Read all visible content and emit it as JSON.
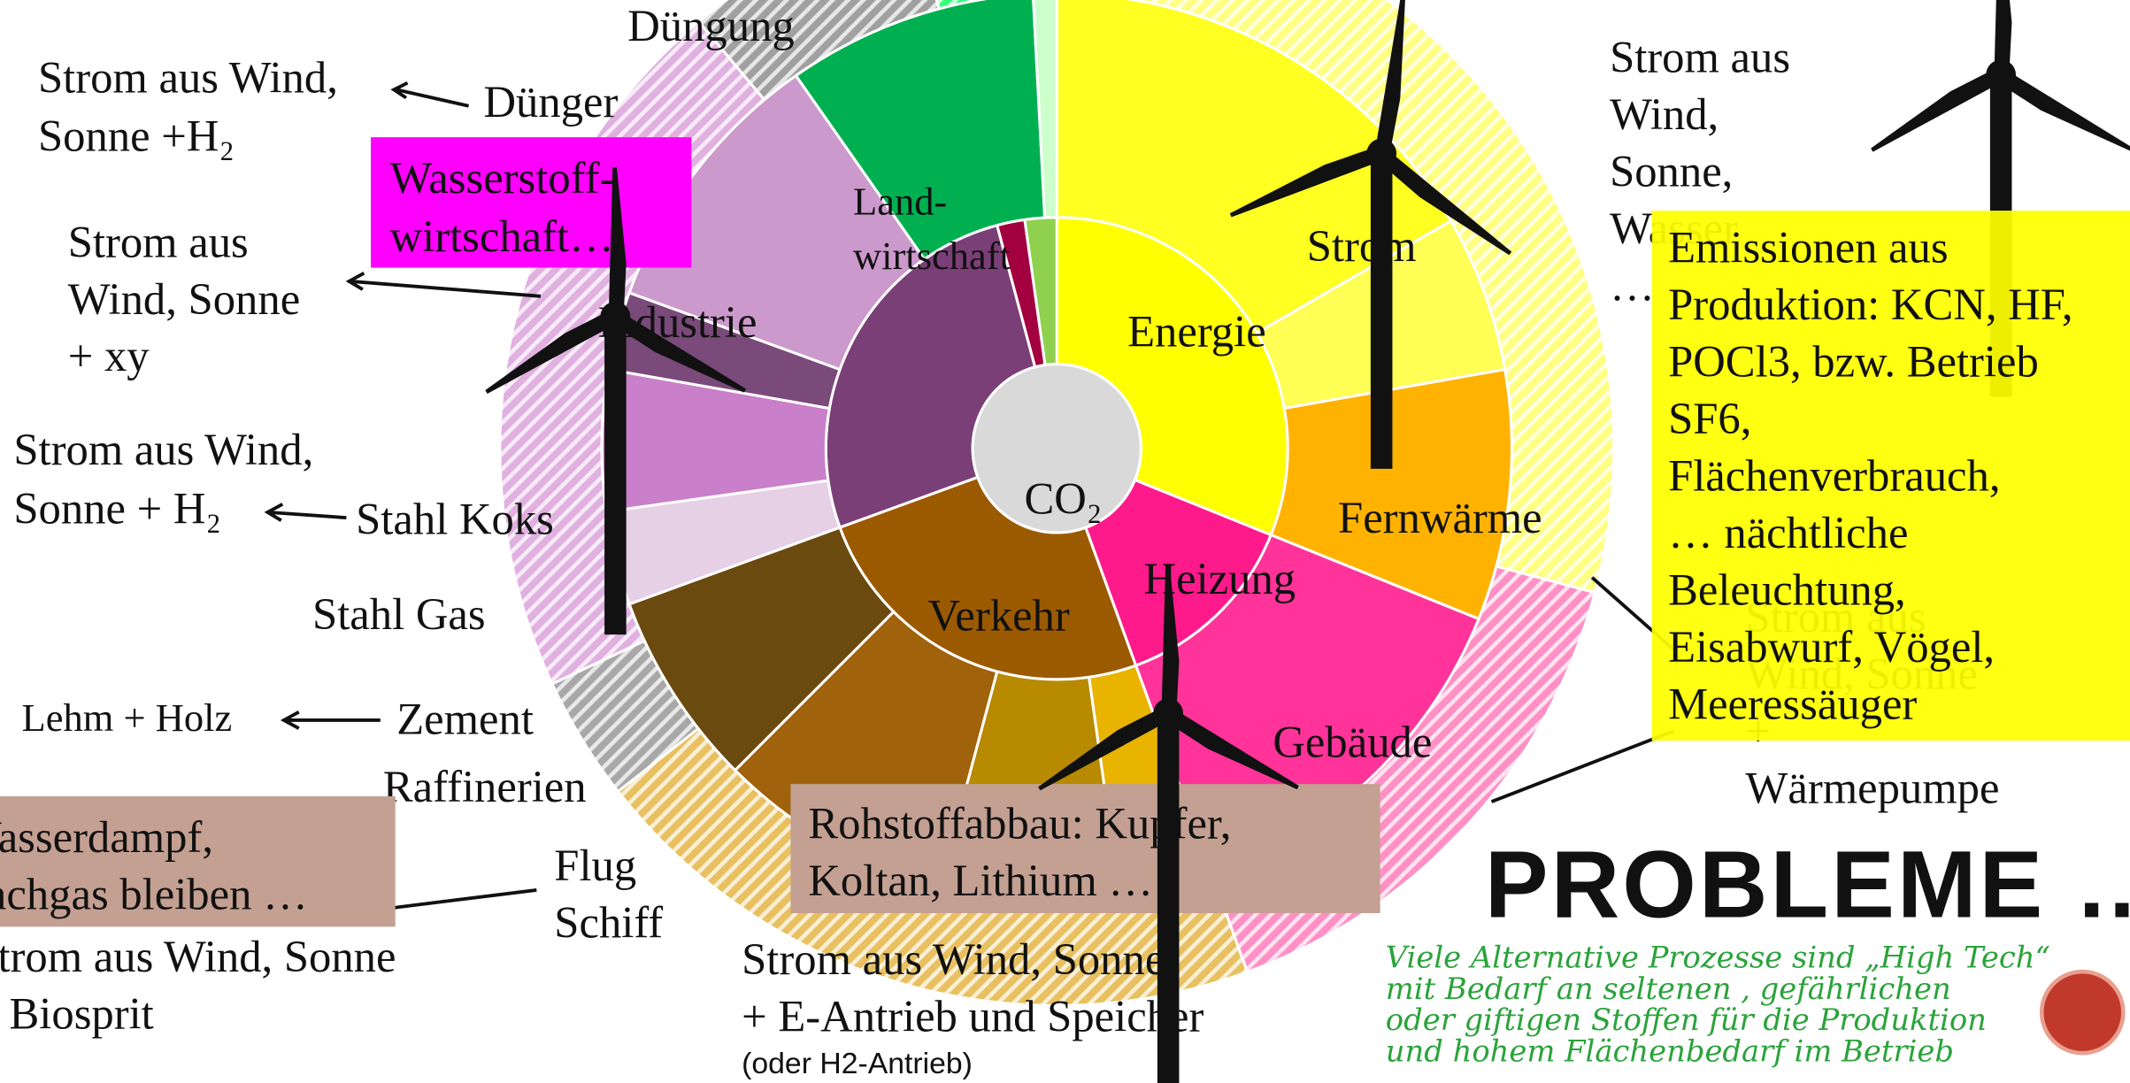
{
  "labels": {
    "duengung": {
      "lines": [
        "Düngung"
      ]
    },
    "duenger": {
      "lines": [
        "Dünger"
      ]
    },
    "strom_duenger": {
      "lines": [
        "Strom aus Wind,",
        "Sonne +H₂"
      ]
    },
    "wasserstoff": {
      "lines": [
        "Wasserstoff-",
        "wirtschaft…"
      ]
    },
    "landwirtschaft": {
      "lines": [
        "Land-",
        "wirtschaft"
      ]
    },
    "strom": {
      "lines": [
        "Strom"
      ]
    },
    "energie": {
      "lines": [
        "Energie"
      ]
    },
    "strom_industrie": {
      "lines": [
        "Strom aus",
        "Wind, Sonne",
        "+ xy"
      ]
    },
    "industrie": {
      "lines": [
        "Industrie"
      ]
    },
    "strom_stahl": {
      "lines": [
        "Strom aus Wind,",
        "Sonne + H₂"
      ]
    },
    "stahl_koks": {
      "lines": [
        "Stahl Koks"
      ]
    },
    "stahl_gas": {
      "lines": [
        "Stahl Gas"
      ]
    },
    "co2": {
      "lines": [
        "CO₂"
      ]
    },
    "fernwaerme": {
      "lines": [
        "Fernwärme"
      ]
    },
    "heizung": {
      "lines": [
        "Heizung"
      ]
    },
    "verkehr": {
      "lines": [
        "Verkehr"
      ]
    },
    "lehm": {
      "lines": [
        "Lehm + Holz"
      ]
    },
    "zement": {
      "lines": [
        "Zement"
      ]
    },
    "gebaeude": {
      "lines": [
        "Gebäude"
      ]
    },
    "raffinerien": {
      "lines": [
        "Raffinerien"
      ]
    },
    "wasserdampf": {
      "lines": [
        "Wasserdampf,",
        "Lachgas bleiben …"
      ]
    },
    "flug": {
      "lines": [
        "Flug",
        "Schiff"
      ]
    },
    "strom_flug": {
      "lines": [
        "Strom aus Wind, Sonne",
        "+ Biosprit"
      ]
    },
    "rohstoff": {
      "lines": [
        "Rohstoffabbau: Kupfer,",
        "Koltan, Lithium …"
      ]
    },
    "strom_verkehr": {
      "lines": [
        "Strom aus Wind, Sonne",
        " + E-Antrieb und Speicher"
      ]
    },
    "strom_verkehr_note": {
      "lines": [
        "(oder H2-Antrieb)"
      ]
    },
    "strom_energie": {
      "lines": [
        "Strom aus",
        "Wind,",
        "Sonne,",
        "Wasser",
        "…"
      ]
    },
    "strom_gebaeude": {
      "lines": [
        "Strom aus",
        "Wind, Sonne",
        "+",
        "Wärmepumpe"
      ]
    },
    "emissionen": {
      "lines": [
        "Emissionen aus",
        "Produktion: KCN, HF,",
        "POCl3, bzw. Betrieb",
        "SF6,",
        "Flächenverbrauch,",
        "… nächtliche",
        "Beleuchtung,",
        "Eisabwurf, Vögel,",
        "Meeressäuger"
      ]
    },
    "probleme": {
      "lines": [
        "PROBLEME …"
      ]
    },
    "hinweis": {
      "lines": [
        "Viele Alternative Prozesse sind „High Tech“",
        "mit Bedarf an seltenen , gefährlichen",
        "oder giftigen Stoffen für die Produktion",
        "und hohem Flächenbedarf im Betrieb"
      ]
    }
  }
}
